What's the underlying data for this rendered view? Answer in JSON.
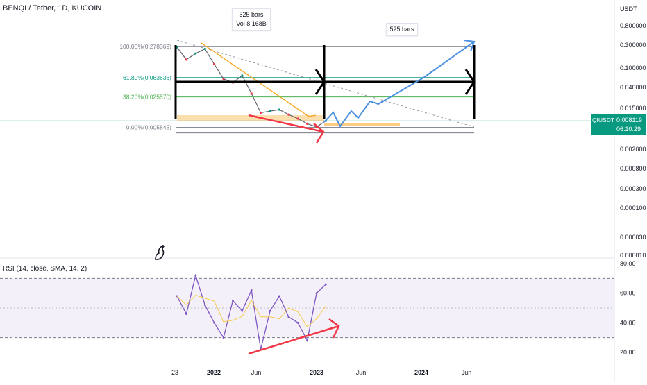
{
  "header": {
    "title": "BENQI / Tether, 1D, KUCOIN",
    "currency": "USDT"
  },
  "price_badge": {
    "ticker": "QIUSDT",
    "price": "0.008119",
    "countdown": "06:10:29",
    "color": "#089981"
  },
  "annotations": {
    "bars_left_line1": "525 bars",
    "bars_left_line2": "Vol 8.168B",
    "bars_right": "525 bars"
  },
  "fib_levels": [
    {
      "label": "100.00%(0.278369)",
      "value": 0.278369,
      "color": "#787b86"
    },
    {
      "label": "61.80%(0.063636)",
      "value": 0.063636,
      "color": "#089981"
    },
    {
      "label": "38.20%(0.025570)",
      "value": 0.02557,
      "color": "#4caf50"
    },
    {
      "label": "0.00%(0.005845)",
      "value": 0.005845,
      "color": "#787b86"
    }
  ],
  "rsi_panel": {
    "title": "RSI (14, close, SMA, 14, 2)",
    "y_ticks": [
      "80.00",
      "60.00",
      "40.00",
      "20.00"
    ],
    "band_upper": 70,
    "band_lower": 30,
    "band_color": "#7e57c2"
  },
  "colors": {
    "candle_up": "#089981",
    "candle_down": "#f23645",
    "trend_orange": "#f7a21b",
    "projection_blue": "#4a90e2",
    "divergence_red": "#f23645",
    "rsi_line": "#7e57c2",
    "rsi_sma": "#f7c948"
  },
  "chart_data": [
    {
      "type": "line",
      "title": "BENQI / Tether, 1D, KUCOIN",
      "scale": "log",
      "y_ticks": [
        "0.800000",
        "0.300000",
        "0.100000",
        "0.040000",
        "0.015000",
        "0.008119",
        "0.002000",
        "0.000800",
        "0.000300",
        "0.000100",
        "0.000030",
        "0.000010"
      ],
      "x_ticks": [
        "23",
        "2022",
        "Jun",
        "2023",
        "Jun",
        "2024",
        "Jun"
      ],
      "ylim": [
        1e-05,
        0.8
      ],
      "series": [
        {
          "name": "QIUSDT",
          "x": [
            "2021-09",
            "2021-10",
            "2021-11",
            "2021-12",
            "2022-01",
            "2022-02",
            "2022-03",
            "2022-04",
            "2022-05",
            "2022-06",
            "2022-07",
            "2022-08",
            "2022-09",
            "2022-10",
            "2022-11",
            "2022-12",
            "2023-01"
          ],
          "values": [
            0.27,
            0.15,
            0.2,
            0.25,
            0.12,
            0.06,
            0.05,
            0.07,
            0.03,
            0.012,
            0.013,
            0.014,
            0.011,
            0.009,
            0.007,
            0.006,
            0.0081
          ]
        }
      ]
    },
    {
      "type": "line",
      "title": "RSI (14, close, SMA, 14, 2)",
      "y_ticks": [
        "80.00",
        "60.00",
        "40.00",
        "20.00"
      ],
      "ylim": [
        15,
        82
      ],
      "series": [
        {
          "x": [
            "2021-09",
            "2021-10",
            "2021-11",
            "2021-12",
            "2022-01",
            "2022-02",
            "2022-03",
            "2022-04",
            "2022-05",
            "2022-06",
            "2022-07",
            "2022-08",
            "2022-09",
            "2022-10",
            "2022-11",
            "2022-12",
            "2023-01"
          ],
          "values": [
            58,
            46,
            72,
            52,
            40,
            30,
            55,
            48,
            62,
            22,
            48,
            58,
            44,
            40,
            28,
            60,
            66
          ]
        }
      ]
    }
  ]
}
